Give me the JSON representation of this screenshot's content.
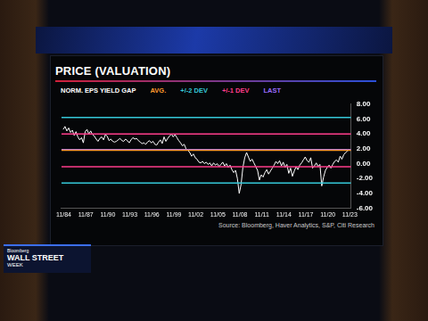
{
  "chart_data": {
    "type": "line",
    "title": "PRICE (VALUATION)",
    "x": [
      1984.75,
      1985,
      1985.25,
      1985.5,
      1985.75,
      1986,
      1986.25,
      1986.5,
      1986.75,
      1987,
      1987.25,
      1987.5,
      1987.75,
      1988,
      1988.25,
      1988.5,
      1988.75,
      1989,
      1989.25,
      1989.5,
      1989.75,
      1990,
      1990.25,
      1990.5,
      1990.75,
      1991,
      1991.25,
      1991.5,
      1991.75,
      1992,
      1992.25,
      1992.5,
      1992.75,
      1993,
      1993.25,
      1993.5,
      1993.75,
      1994,
      1994.25,
      1994.5,
      1994.75,
      1995,
      1995.25,
      1995.5,
      1995.75,
      1996,
      1996.25,
      1996.5,
      1996.75,
      1997,
      1997.25,
      1997.5,
      1997.75,
      1998,
      1998.25,
      1998.5,
      1998.75,
      1999,
      1999.25,
      1999.5,
      1999.75,
      2000,
      2000.25,
      2000.5,
      2000.75,
      2001,
      2001.25,
      2001.5,
      2001.75,
      2002,
      2002.25,
      2002.5,
      2002.75,
      2003,
      2003.25,
      2003.5,
      2003.75,
      2004,
      2004.25,
      2004.5,
      2004.75,
      2005,
      2005.25,
      2005.5,
      2005.75,
      2006,
      2006.25,
      2006.5,
      2006.75,
      2007,
      2007.25,
      2007.5,
      2007.75,
      2008,
      2008.25,
      2008.5,
      2008.75,
      2009,
      2009.25,
      2009.5,
      2009.75,
      2010,
      2010.25,
      2010.5,
      2010.75,
      2011,
      2011.25,
      2011.5,
      2011.75,
      2012,
      2012.25,
      2012.5,
      2012.75,
      2013,
      2013.25,
      2013.5,
      2013.75,
      2014,
      2014.25,
      2014.5,
      2014.75,
      2015,
      2015.25,
      2015.5,
      2015.75,
      2016,
      2016.25,
      2016.5,
      2016.75,
      2017,
      2017.25,
      2017.5,
      2017.75,
      2018,
      2018.25,
      2018.5,
      2018.75,
      2019,
      2019.25,
      2019.5,
      2019.75,
      2020,
      2020.25,
      2020.5,
      2020.75,
      2021,
      2021.25,
      2021.5,
      2021.75,
      2022,
      2022.25,
      2022.5,
      2022.75,
      2023,
      2023.25,
      2023.5,
      2023.75
    ],
    "series": [
      {
        "name": "NORM. EPS YIELD GAP",
        "color": "#ffffff",
        "values": [
          4.6,
          5.0,
          4.4,
          4.8,
          4.2,
          4.5,
          3.8,
          4.3,
          3.6,
          3.2,
          3.5,
          2.8,
          4.3,
          4.6,
          4.0,
          4.4,
          3.9,
          3.7,
          3.3,
          3.0,
          3.4,
          3.6,
          3.2,
          3.9,
          3.7,
          3.1,
          3.3,
          3.0,
          2.9,
          3.0,
          3.2,
          3.4,
          3.1,
          3.0,
          3.3,
          3.1,
          2.8,
          3.2,
          3.5,
          3.3,
          3.4,
          3.1,
          2.9,
          2.7,
          2.8,
          2.6,
          2.9,
          3.1,
          2.8,
          3.0,
          2.6,
          2.5,
          2.9,
          3.2,
          2.7,
          3.6,
          3.0,
          3.4,
          3.7,
          4.0,
          3.6,
          3.9,
          3.5,
          3.1,
          2.8,
          2.4,
          2.6,
          2.0,
          1.8,
          1.5,
          1.0,
          1.3,
          0.8,
          0.6,
          0.2,
          0.1,
          0.3,
          0.0,
          0.2,
          -0.1,
          0.1,
          -0.3,
          0.1,
          -0.2,
          0.0,
          -0.4,
          -0.1,
          0.2,
          -0.3,
          0.0,
          -0.5,
          -0.2,
          -0.8,
          -1.2,
          -0.9,
          -2.0,
          -4.0,
          -2.8,
          -0.5,
          0.8,
          1.5,
          0.9,
          0.3,
          0.6,
          0.1,
          -0.4,
          -0.9,
          -2.2,
          -1.5,
          -1.8,
          -1.2,
          -0.8,
          -1.4,
          -1.0,
          -0.6,
          -0.2,
          0.3,
          0.0,
          0.4,
          -0.3,
          0.2,
          -0.5,
          -0.1,
          -1.3,
          -0.6,
          -1.7,
          -1.0,
          -0.4,
          -0.8,
          -0.2,
          0.1,
          0.5,
          0.9,
          0.4,
          0.2,
          0.8,
          -0.6,
          -0.3,
          0.1,
          -0.4,
          -0.1,
          -3.0,
          -1.8,
          -0.9,
          -0.5,
          -0.2,
          -0.6,
          -0.1,
          0.3,
          0.5,
          0.2,
          1.0,
          0.6,
          1.2,
          1.5,
          1.7,
          1.9
        ]
      }
    ],
    "reference_lines": [
      {
        "name": "AVG.",
        "color": "#ff9a2e",
        "values": [
          1.8
        ]
      },
      {
        "name": "+/-2 DEV",
        "color": "#35c8d8",
        "values": [
          6.2,
          -2.6
        ]
      },
      {
        "name": "+/-1 DEV",
        "color": "#ff3d8b",
        "values": [
          4.0,
          -0.4
        ]
      },
      {
        "name": "LAST",
        "color": "#9a6bff",
        "values": [
          1.9
        ]
      }
    ],
    "xlim": [
      1984.5,
      2024.0
    ],
    "xticks": [
      {
        "value": 1984.83,
        "label": "11/84"
      },
      {
        "value": 1987.83,
        "label": "11/87"
      },
      {
        "value": 1990.83,
        "label": "11/90"
      },
      {
        "value": 1993.83,
        "label": "11/93"
      },
      {
        "value": 1996.83,
        "label": "11/96"
      },
      {
        "value": 1999.83,
        "label": "11/99"
      },
      {
        "value": 2002.83,
        "label": "11/02"
      },
      {
        "value": 2005.83,
        "label": "11/05"
      },
      {
        "value": 2008.83,
        "label": "11/08"
      },
      {
        "value": 2011.83,
        "label": "11/11"
      },
      {
        "value": 2014.83,
        "label": "11/14"
      },
      {
        "value": 2017.83,
        "label": "11/17"
      },
      {
        "value": 2020.83,
        "label": "11/20"
      },
      {
        "value": 2023.83,
        "label": "11/23"
      }
    ],
    "ylim": [
      -6,
      8
    ],
    "yticks": [
      {
        "value": 8,
        "label": "8.00"
      },
      {
        "value": 6,
        "label": "6.00"
      },
      {
        "value": 4,
        "label": "4.00"
      },
      {
        "value": 2,
        "label": "2.00"
      },
      {
        "value": 0,
        "label": "0.00"
      },
      {
        "value": -2,
        "label": "-2.00"
      },
      {
        "value": -4,
        "label": "-4.00"
      },
      {
        "value": -6,
        "label": "-6.00"
      }
    ],
    "grid": false,
    "legend": "top",
    "source": "Source: Bloomberg, Haver Analytics, S&P, Citi Research"
  },
  "overlay": {
    "brand": [
      "Bloomberg",
      "WALL STREET",
      "WEEK"
    ]
  }
}
